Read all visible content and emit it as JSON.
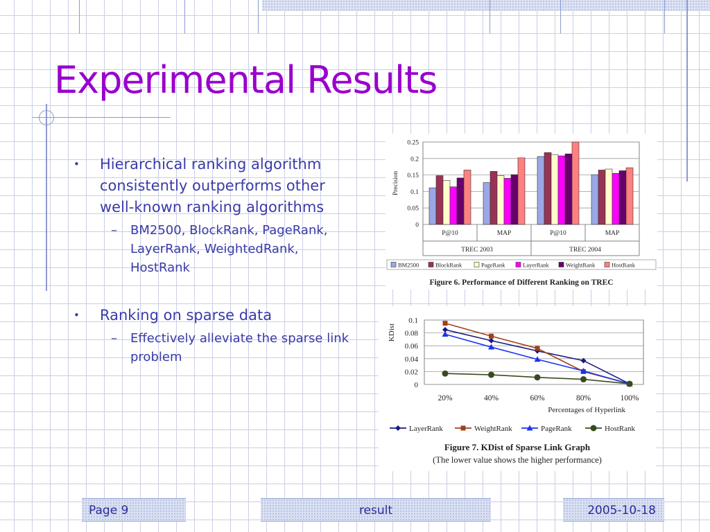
{
  "slide": {
    "title": "Experimental Results",
    "bullets": [
      {
        "text": "Hierarchical ranking algorithm consistently outperforms other well-known ranking algorithms",
        "sub": "BM2500, BlockRank, PageRank, LayerRank, WeightedRank, HostRank"
      },
      {
        "text": "Ranking on sparse data",
        "sub": "Effectively alleviate the sparse link problem"
      }
    ],
    "bullet_symbol": "•",
    "sub_symbol": "–"
  },
  "footer": {
    "page": "Page 9",
    "center": "result",
    "date": "2005-10-18"
  },
  "chart_data": [
    {
      "type": "bar",
      "title": "Figure 6. Performance of Different Ranking on TREC",
      "ylabel": "Precision",
      "ylim": [
        0,
        0.25
      ],
      "yticks": [
        "0",
        "0.05",
        "0.1",
        "0.15",
        "0.2",
        "0.25"
      ],
      "categories": [
        "P@10",
        "MAP",
        "P@10",
        "MAP"
      ],
      "groups": [
        "TREC 2003",
        "TREC 2004"
      ],
      "grid": true,
      "legend_position": "bottom",
      "series": [
        {
          "name": "BM2500",
          "color": "#9aa8e6",
          "values": [
            0.111,
            0.127,
            0.206,
            0.151
          ]
        },
        {
          "name": "BlockRank",
          "color": "#993355",
          "values": [
            0.148,
            0.161,
            0.218,
            0.165
          ]
        },
        {
          "name": "PageRank",
          "color": "#ffffcc",
          "values": [
            0.133,
            0.148,
            0.212,
            0.168
          ]
        },
        {
          "name": "LayerRank",
          "color": "#ff00ff",
          "values": [
            0.114,
            0.14,
            0.208,
            0.155
          ]
        },
        {
          "name": "WeightRank",
          "color": "#66006b",
          "values": [
            0.141,
            0.151,
            0.214,
            0.163
          ]
        },
        {
          "name": "HostRank",
          "color": "#ff8080",
          "values": [
            0.165,
            0.202,
            0.25,
            0.172
          ]
        }
      ]
    },
    {
      "type": "line",
      "title": "Figure 7. KDist of Sparse Link Graph",
      "subtitle": "(The lower value shows the higher performance)",
      "xlabel": "Percentages of Hyperlink",
      "ylabel": "KDist",
      "x": [
        "20%",
        "40%",
        "60%",
        "80%",
        "100%"
      ],
      "ylim": [
        0,
        0.1
      ],
      "yticks": [
        "0",
        "0.02",
        "0.04",
        "0.06",
        "0.08",
        "0.1"
      ],
      "grid": true,
      "legend_position": "bottom",
      "series": [
        {
          "name": "LayerRank",
          "color": "#1a1a80",
          "marker": "diamond",
          "values": [
            0.085,
            0.068,
            0.052,
            0.037,
            0.001
          ]
        },
        {
          "name": "WeightRank",
          "color": "#a0401c",
          "marker": "square",
          "values": [
            0.095,
            0.075,
            0.056,
            0.02,
            0.001
          ]
        },
        {
          "name": "PageRank",
          "color": "#1a33ee",
          "marker": "triangle",
          "values": [
            0.078,
            0.058,
            0.039,
            0.021,
            0.001
          ]
        },
        {
          "name": "HostRank",
          "color": "#3a4a20",
          "marker": "circle",
          "values": [
            0.017,
            0.015,
            0.011,
            0.008,
            0.001
          ]
        }
      ]
    }
  ]
}
